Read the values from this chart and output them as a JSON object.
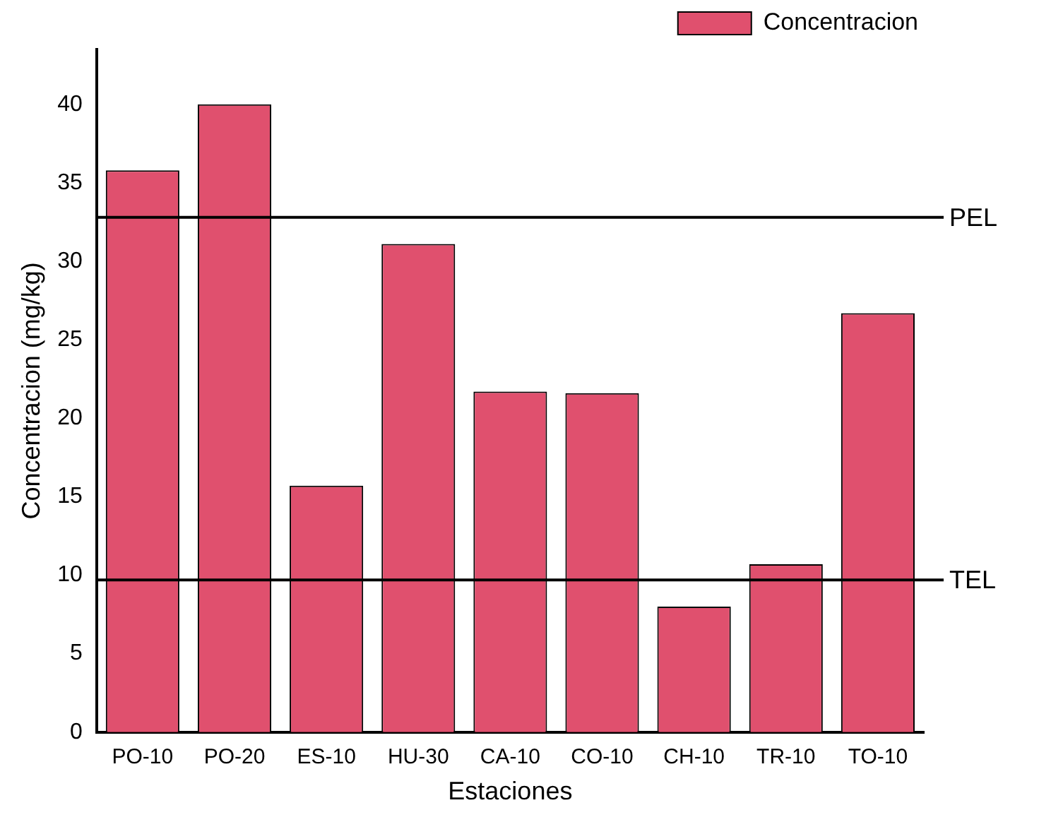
{
  "chart_data": {
    "type": "bar",
    "xlabel": "Estaciones",
    "ylabel": "Concentracion (mg/kg)",
    "categories": [
      "PO-10",
      "PO-20",
      "ES-10",
      "HU-30",
      "CA-10",
      "CO-10",
      "CH-10",
      "TR-10",
      "TO-10"
    ],
    "series": [
      {
        "name": "Concentracion",
        "color": "#e0506e",
        "values": [
          35.8,
          40,
          15.7,
          31.1,
          21.7,
          21.6,
          8.0,
          10.7,
          26.7
        ]
      }
    ],
    "ylim": [
      0,
      43.5
    ],
    "yticks": [
      0,
      5,
      10,
      15,
      20,
      25,
      30,
      35,
      40
    ],
    "ref_lines": [
      {
        "axis": "y",
        "value": 32.8,
        "label": "PEL",
        "color": "#000000"
      },
      {
        "axis": "y",
        "value": 9.7,
        "label": "TEL",
        "color": "#000000"
      }
    ],
    "grid": false,
    "legend": "top right"
  }
}
